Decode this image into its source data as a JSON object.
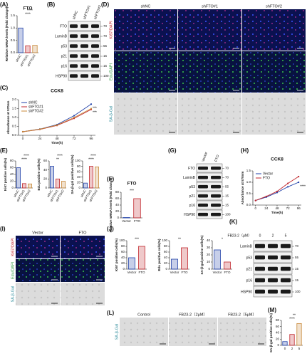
{
  "panel_labels": [
    "(A)",
    "(B)",
    "(C)",
    "(D)",
    "(E)",
    "(F)",
    "(G)",
    "(H)",
    "(I)",
    "(J)",
    "(K)",
    "(L)",
    "(M)"
  ],
  "chart_data": [
    {
      "type": "bar",
      "title": "FTO",
      "y_label": "Relative mRNA levels (Fold change)",
      "categories": [
        "shNC",
        "shFTO#1",
        "shFTO#2"
      ],
      "values": [
        1.0,
        0.28,
        0.3
      ],
      "colors": [
        "#1f3fa8",
        "#c0262c",
        "#c8893a"
      ],
      "ylim": [
        0,
        1.5
      ],
      "yticks": [
        {
          "value": 0,
          "label": "0.0"
        },
        {
          "value": 0.5,
          "label": "0.5"
        },
        {
          "value": 1,
          "label": "1.0"
        },
        {
          "value": 1.5,
          "label": "1.5"
        }
      ],
      "annotations": [
        "****",
        "****"
      ]
    },
    {
      "type": "line",
      "title": "CCK8",
      "y_label": "Absorbance at 570nm",
      "x_label": "Time(h)",
      "x": [
        0,
        24,
        48,
        72,
        96
      ],
      "xlim": [
        -6,
        102
      ],
      "xticks": [
        0,
        24,
        48,
        72,
        96
      ],
      "ylim": [
        0,
        2
      ],
      "yticks": [
        {
          "value": 0,
          "label": "0.0"
        },
        {
          "value": 0.5,
          "label": "0.5"
        },
        {
          "value": 1,
          "label": "1.0"
        },
        {
          "value": 1.5,
          "label": "1.5"
        },
        {
          "value": 2,
          "label": "2.0"
        }
      ],
      "series": [
        {
          "name": "shNC",
          "color": "#1f3fa8",
          "values": [
            0.2,
            0.35,
            0.6,
            1.1,
            1.75
          ]
        },
        {
          "name": "shFTO#1",
          "color": "#c0262c",
          "values": [
            0.2,
            0.33,
            0.55,
            0.95,
            1.45
          ]
        },
        {
          "name": "shFTO#2",
          "color": "#c8893a",
          "values": [
            0.2,
            0.34,
            0.57,
            1.0,
            1.5
          ]
        }
      ],
      "annotations": [
        "***",
        "***"
      ]
    },
    {
      "type": "bar",
      "y_label": "Ki67 positive cells(%)",
      "categories": [
        "shNC",
        "shFTO#1",
        "shFTO#2"
      ],
      "values": [
        60,
        13,
        12
      ],
      "colors": [
        "#1f3fa8",
        "#c0262c",
        "#c8893a"
      ],
      "ylim": [
        0,
        80
      ],
      "yticks": [
        0,
        20,
        40,
        60,
        80
      ],
      "annotations": [
        "****",
        "****"
      ]
    },
    {
      "type": "bar",
      "y_label": "Edu positive cells(%)",
      "categories": [
        "shNC",
        "shFTO#1",
        "shFTO#2"
      ],
      "values": [
        48,
        20,
        15
      ],
      "colors": [
        "#1f3fa8",
        "#c0262c",
        "#c8893a"
      ],
      "ylim": [
        0,
        60
      ],
      "yticks": [
        0,
        20,
        40,
        60
      ],
      "annotations": [
        "**",
        "****"
      ]
    },
    {
      "type": "bar",
      "y_label": "SA-β-gal positive cells(%)",
      "categories": [
        "shNC",
        "shFTO#1",
        "shFTO#2"
      ],
      "values": [
        18,
        80,
        78
      ],
      "colors": [
        "#1f3fa8",
        "#c0262c",
        "#c8893a"
      ],
      "ylim": [
        0,
        100
      ],
      "yticks": [
        0,
        20,
        40,
        60,
        80,
        100
      ],
      "annotations": [
        "****",
        "****"
      ]
    },
    {
      "type": "bar",
      "title": "FTO",
      "y_label": "Relative mRNA levels (Fold change)",
      "categories": [
        "Vector",
        "FTO"
      ],
      "values": [
        1,
        60
      ],
      "colors": [
        "#1f3fa8",
        "#c0262c"
      ],
      "ylim": [
        0,
        80
      ],
      "yticks": [
        0,
        20,
        40,
        60,
        80
      ],
      "annotations": [
        "***"
      ]
    },
    {
      "type": "line",
      "title": "CCK8",
      "y_label": "Absorbance at 570nm",
      "x_label": "Time(h)",
      "x": [
        0,
        24,
        48,
        72,
        96
      ],
      "xlim": [
        -6,
        102
      ],
      "xticks": [
        0,
        24,
        48,
        72,
        96
      ],
      "ylim": [
        0,
        1.5
      ],
      "yticks": [
        {
          "value": 0,
          "label": "0.0"
        },
        {
          "value": 0.5,
          "label": "0.5"
        },
        {
          "value": 1,
          "label": "1.0"
        },
        {
          "value": 1.5,
          "label": "1.5"
        }
      ],
      "series": [
        {
          "name": "Vector",
          "color": "#1f3fa8",
          "values": [
            0.2,
            0.35,
            0.55,
            0.8,
            1.0
          ]
        },
        {
          "name": "FTO",
          "color": "#c0262c",
          "values": [
            0.2,
            0.38,
            0.6,
            0.95,
            1.25
          ]
        }
      ],
      "annotations": [
        "****"
      ]
    },
    {
      "type": "bar",
      "y_label": "Ki67 positive cells(%)",
      "categories": [
        "Vector",
        "FTO"
      ],
      "values": [
        40,
        80
      ],
      "colors": [
        "#1f3fa8",
        "#c0262c"
      ],
      "ylim": [
        0,
        100
      ],
      "yticks": [
        0,
        20,
        40,
        60,
        80,
        100
      ],
      "annotations": [
        "***"
      ]
    },
    {
      "type": "bar",
      "y_label": "Edu positive cells(%)",
      "categories": [
        "Vector",
        "FTO"
      ],
      "values": [
        35,
        75
      ],
      "colors": [
        "#1f3fa8",
        "#c0262c"
      ],
      "ylim": [
        0,
        100
      ],
      "yticks": [
        0,
        20,
        40,
        60,
        80,
        100
      ],
      "annotations": [
        "**"
      ]
    },
    {
      "type": "bar",
      "y_label": "SA-β-gal positive cells(%)",
      "categories": [
        "Vector",
        "FTO"
      ],
      "values": [
        27,
        10
      ],
      "colors": [
        "#1f3fa8",
        "#c0262c"
      ],
      "ylim": [
        0,
        40
      ],
      "yticks": [
        0,
        10,
        20,
        30,
        40
      ],
      "annotations": [
        "*"
      ]
    },
    {
      "type": "bar",
      "y_label": "SA-β-gal positive cells(%)",
      "categories": [
        "0",
        "2",
        "5"
      ],
      "values": [
        12,
        35,
        70
      ],
      "colors": [
        "#1f3fa8",
        "#c0262c",
        "#c8893a"
      ],
      "ylim": [
        0,
        80
      ],
      "yticks": [
        0,
        20,
        40,
        60,
        80
      ],
      "annotations": [
        "****",
        "**"
      ]
    }
  ],
  "blots": [
    {
      "columns": [
        "shNC",
        "shFTO#1",
        "shFTO#2"
      ],
      "rows": [
        "FTO",
        "LaminB",
        "p53",
        "p21",
        "p16",
        "HSP90"
      ],
      "markers": [
        70,
        70,
        55,
        15,
        15,
        100
      ]
    },
    {
      "columns": [
        "Vector",
        "FTO"
      ],
      "rows": [
        "FTO",
        "LaminB",
        "p53",
        "p21",
        "p16",
        "HSP90"
      ],
      "markers": [
        70,
        70,
        55,
        15,
        15,
        100
      ]
    },
    {
      "treatment": "FB23-2（μM）",
      "columns": [
        "0",
        "2",
        "5"
      ],
      "rows": [
        "LaminB",
        "p53",
        "p21",
        "p16",
        "HSP90"
      ],
      "markers": [
        70,
        55,
        15,
        15,
        100
      ]
    }
  ],
  "images": [
    {
      "columns": [
        "shNC",
        "shFTO#1",
        "shFTO#2"
      ],
      "rows": [
        "Ki67/DAPI",
        "Edu/DAPI",
        "SA-β-Gal"
      ]
    },
    {
      "columns": [
        "Vector",
        "FTO"
      ],
      "rows": [
        "Ki67/DAPI",
        "Edu/DAPI",
        "SA-β-Gal"
      ]
    },
    {
      "columns": [
        "Control",
        "FB23-2（2μM）",
        "FB23-2（5μM）"
      ],
      "rows": [
        "SA-β-Gal"
      ]
    }
  ]
}
